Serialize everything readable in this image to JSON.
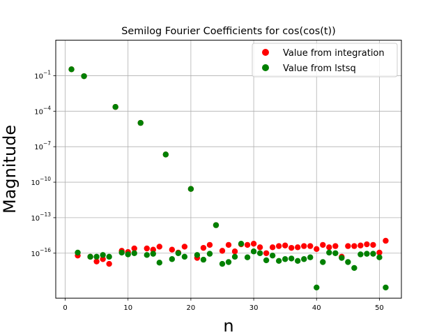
{
  "chart_data": {
    "type": "scatter",
    "title": "Semilog Fourier Coefficients for cos(cos(t))",
    "xlabel": "n",
    "ylabel": "Magnitude",
    "xlim": [
      -1.5,
      53.5
    ],
    "ylim_log10": [
      -19.8,
      2.0
    ],
    "yscale": "log",
    "grid": true,
    "legend_position": "top-right",
    "x_ticks": [
      0,
      10,
      20,
      30,
      40,
      50
    ],
    "x_tick_labels": [
      "0",
      "10",
      "20",
      "30",
      "40",
      "50"
    ],
    "y_ticks_log10": [
      -1,
      -4,
      -7,
      -10,
      -13,
      -16
    ],
    "y_tick_labels": [
      {
        "base": "10",
        "exp": "−1"
      },
      {
        "base": "10",
        "exp": "−4"
      },
      {
        "base": "10",
        "exp": "−7"
      },
      {
        "base": "10",
        "exp": "−10"
      },
      {
        "base": "10",
        "exp": "−13"
      },
      {
        "base": "10",
        "exp": "−16"
      }
    ],
    "series": [
      {
        "name": "Value from integration",
        "color": "#ff0000",
        "x": [
          1,
          2,
          3,
          4,
          5,
          6,
          7,
          8,
          9,
          10,
          11,
          12,
          13,
          14,
          15,
          16,
          17,
          18,
          19,
          20,
          21,
          22,
          23,
          24,
          25,
          26,
          27,
          28,
          29,
          30,
          31,
          32,
          33,
          34,
          35,
          36,
          37,
          38,
          39,
          40,
          41,
          42,
          43,
          44,
          45,
          46,
          47,
          48,
          49,
          50,
          51
        ],
        "y_log10": [
          -0.46,
          -16.2,
          -1.04,
          -16.3,
          -16.7,
          -16.5,
          -16.9,
          -3.64,
          -15.8,
          -15.9,
          -15.6,
          -4.99,
          -15.6,
          -15.7,
          -15.45,
          -7.66,
          -15.7,
          -15.95,
          -15.45,
          -10.57,
          -16.4,
          -15.55,
          -15.3,
          -13.63,
          -15.8,
          -15.3,
          -15.85,
          -15.25,
          -15.3,
          -15.2,
          -15.5,
          -16.0,
          -15.5,
          -15.4,
          -15.35,
          -15.55,
          -15.5,
          -15.4,
          -15.4,
          -15.65,
          -15.3,
          -15.5,
          -15.4,
          -16.3,
          -15.4,
          -15.4,
          -15.35,
          -15.25,
          -15.3,
          -15.95,
          -14.95
        ]
      },
      {
        "name": "Value from lstsq",
        "color": "#008000",
        "x": [
          1,
          2,
          3,
          4,
          5,
          6,
          7,
          8,
          9,
          10,
          11,
          12,
          13,
          14,
          15,
          16,
          17,
          18,
          19,
          20,
          21,
          22,
          23,
          24,
          25,
          26,
          27,
          28,
          29,
          30,
          31,
          32,
          33,
          34,
          35,
          36,
          37,
          38,
          39,
          40,
          41,
          42,
          43,
          44,
          45,
          46,
          47,
          48,
          49,
          50,
          51
        ],
        "y_log10": [
          -0.46,
          -15.95,
          -1.04,
          -16.3,
          -16.3,
          -16.15,
          -16.3,
          -3.64,
          -15.95,
          -16.1,
          -16.0,
          -4.99,
          -16.15,
          -16.05,
          -16.8,
          -7.66,
          -16.5,
          -16.0,
          -16.3,
          -10.57,
          -16.15,
          -16.55,
          -16.05,
          -13.63,
          -16.9,
          -16.75,
          -16.3,
          -15.2,
          -16.35,
          -15.85,
          -16.0,
          -16.6,
          -16.2,
          -16.65,
          -16.5,
          -16.45,
          -16.65,
          -16.5,
          -16.35,
          -18.9,
          -16.75,
          -15.95,
          -16.0,
          -16.4,
          -16.75,
          -17.25,
          -16.1,
          -16.05,
          -16.05,
          -16.35,
          -18.9
        ]
      }
    ]
  }
}
